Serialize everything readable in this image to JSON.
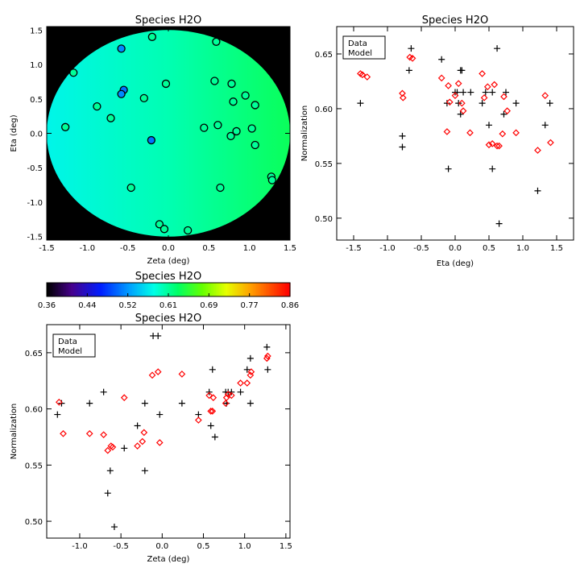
{
  "chart_data": [
    {
      "type": "heatmap",
      "title": "Species H2O",
      "xlabel": "Zeta (deg)",
      "ylabel": "Eta (deg)",
      "xlim": [
        -1.5,
        1.5
      ],
      "ylim": [
        -1.55,
        1.55
      ],
      "xticks": [
        "-1.5",
        "-1.0",
        "-0.5",
        "0.0",
        "0.5",
        "1.0",
        "1.5"
      ],
      "yticks": [
        "-1.5",
        "-1.0",
        "-0.5",
        "0.0",
        "0.5",
        "1.0",
        "1.5"
      ],
      "field_description": "Model normalization inside a 1.5 deg radius circular field; black outside",
      "markers": [
        {
          "x": -0.58,
          "y": 1.23,
          "v": 0.52
        },
        {
          "x": -0.2,
          "y": 1.4,
          "v": 0.61
        },
        {
          "x": 0.59,
          "y": 1.33,
          "v": 0.61
        },
        {
          "x": -1.17,
          "y": 0.88,
          "v": 0.61
        },
        {
          "x": -0.03,
          "y": 0.72,
          "v": 0.61
        },
        {
          "x": 0.57,
          "y": 0.76,
          "v": 0.61
        },
        {
          "x": 0.78,
          "y": 0.72,
          "v": 0.61
        },
        {
          "x": -0.55,
          "y": 0.63,
          "v": 0.51
        },
        {
          "x": -0.58,
          "y": 0.57,
          "v": 0.52
        },
        {
          "x": 0.95,
          "y": 0.55,
          "v": 0.61
        },
        {
          "x": -0.3,
          "y": 0.51,
          "v": 0.61
        },
        {
          "x": 0.8,
          "y": 0.46,
          "v": 0.61
        },
        {
          "x": -0.88,
          "y": 0.39,
          "v": 0.61
        },
        {
          "x": 1.07,
          "y": 0.41,
          "v": 0.61
        },
        {
          "x": -0.71,
          "y": 0.22,
          "v": 0.61
        },
        {
          "x": 0.61,
          "y": 0.12,
          "v": 0.61
        },
        {
          "x": -1.27,
          "y": 0.09,
          "v": 0.61
        },
        {
          "x": 0.44,
          "y": 0.08,
          "v": 0.61
        },
        {
          "x": 1.03,
          "y": 0.07,
          "v": 0.61
        },
        {
          "x": 0.84,
          "y": 0.03,
          "v": 0.61
        },
        {
          "x": 0.77,
          "y": -0.04,
          "v": 0.61
        },
        {
          "x": -0.21,
          "y": -0.1,
          "v": 0.51
        },
        {
          "x": 1.07,
          "y": -0.17,
          "v": 0.61
        },
        {
          "x": 1.27,
          "y": -0.63,
          "v": 0.61
        },
        {
          "x": 1.28,
          "y": -0.68,
          "v": 0.61
        },
        {
          "x": -0.46,
          "y": -0.79,
          "v": 0.61
        },
        {
          "x": 0.64,
          "y": -0.79,
          "v": 0.61
        },
        {
          "x": -0.11,
          "y": -1.32,
          "v": 0.61
        },
        {
          "x": -0.05,
          "y": -1.39,
          "v": 0.61
        },
        {
          "x": 0.24,
          "y": -1.41,
          "v": 0.61
        }
      ]
    },
    {
      "type": "scatter",
      "title": "Species H2O",
      "xlabel": "Eta (deg)",
      "ylabel": "Normalization",
      "xlim": [
        -1.75,
        1.75
      ],
      "ylim": [
        0.48,
        0.675
      ],
      "xticks": [
        "-1.5",
        "-1.0",
        "-0.5",
        "0.0",
        "0.5",
        "1.0",
        "1.5"
      ],
      "yticks": [
        "0.50",
        "0.55",
        "0.60",
        "0.65"
      ],
      "legend_position": "top-left",
      "series": [
        {
          "name": "Data",
          "marker": "plus",
          "color": "#000000",
          "x": [
            -1.4,
            -0.78,
            -0.78,
            -0.68,
            -0.65,
            -0.2,
            -0.12,
            -0.1,
            0.0,
            0.03,
            0.05,
            0.08,
            0.08,
            0.1,
            0.12,
            0.23,
            0.4,
            0.45,
            0.5,
            0.55,
            0.55,
            0.62,
            0.65,
            0.72,
            0.75,
            0.9,
            1.22,
            1.33,
            1.4
          ],
          "y": [
            0.605,
            0.575,
            0.565,
            0.635,
            0.655,
            0.645,
            0.605,
            0.545,
            0.615,
            0.615,
            0.605,
            0.635,
            0.595,
            0.635,
            0.615,
            0.615,
            0.605,
            0.615,
            0.585,
            0.545,
            0.615,
            0.655,
            0.495,
            0.595,
            0.615,
            0.605,
            0.525,
            0.585,
            0.605
          ]
        },
        {
          "name": "Model",
          "marker": "diamond",
          "color": "#ff0000",
          "x": [
            -1.4,
            -1.37,
            -1.3,
            -0.78,
            -0.77,
            -0.67,
            -0.63,
            -0.2,
            -0.12,
            -0.1,
            -0.08,
            0.0,
            0.05,
            0.1,
            0.12,
            0.22,
            0.4,
            0.43,
            0.48,
            0.5,
            0.55,
            0.58,
            0.62,
            0.65,
            0.7,
            0.72,
            0.77,
            0.9,
            1.22,
            1.33,
            1.41
          ],
          "y": [
            0.632,
            0.631,
            0.629,
            0.614,
            0.61,
            0.647,
            0.646,
            0.628,
            0.579,
            0.621,
            0.606,
            0.612,
            0.623,
            0.605,
            0.598,
            0.578,
            0.632,
            0.61,
            0.62,
            0.567,
            0.568,
            0.622,
            0.566,
            0.566,
            0.577,
            0.611,
            0.598,
            0.578,
            0.562,
            0.612,
            0.569
          ]
        }
      ]
    },
    {
      "type": "colorbar",
      "title": "Species H2O",
      "range": [
        0.36,
        0.86
      ],
      "colormap": "rainbow",
      "tick_labels": [
        "0.36",
        "0.44",
        "0.52",
        "0.61",
        "0.69",
        "0.77",
        "0.86"
      ]
    },
    {
      "type": "scatter",
      "title": "Species H2O",
      "xlabel": "Zeta (deg)",
      "ylabel": "Normalization",
      "xlim": [
        -1.4,
        1.55
      ],
      "ylim": [
        0.485,
        0.675
      ],
      "xticks": [
        "-1.0",
        "-0.5",
        "0.0",
        "0.5",
        "1.0",
        "1.5"
      ],
      "yticks": [
        "0.50",
        "0.55",
        "0.60",
        "0.65"
      ],
      "legend_position": "top-left",
      "series": [
        {
          "name": "Data",
          "marker": "plus",
          "color": "#000000",
          "x": [
            -1.27,
            -1.22,
            -0.88,
            -0.71,
            -0.66,
            -0.63,
            -0.58,
            -0.46,
            -0.3,
            -0.21,
            -0.21,
            -0.11,
            -0.05,
            -0.03,
            0.24,
            0.44,
            0.57,
            0.59,
            0.61,
            0.64,
            0.77,
            0.78,
            0.8,
            0.84,
            0.95,
            1.03,
            1.07,
            1.07,
            1.27,
            1.28
          ],
          "y": [
            0.595,
            0.605,
            0.605,
            0.615,
            0.525,
            0.545,
            0.495,
            0.565,
            0.585,
            0.545,
            0.605,
            0.665,
            0.665,
            0.595,
            0.605,
            0.595,
            0.615,
            0.585,
            0.635,
            0.575,
            0.615,
            0.605,
            0.615,
            0.615,
            0.615,
            0.635,
            0.605,
            0.645,
            0.655,
            0.635
          ]
        },
        {
          "name": "Model",
          "marker": "diamond",
          "color": "#ff0000",
          "x": [
            -1.25,
            -1.2,
            -0.88,
            -0.71,
            -0.66,
            -0.62,
            -0.6,
            -0.46,
            -0.3,
            -0.24,
            -0.22,
            -0.12,
            -0.05,
            -0.03,
            0.24,
            0.44,
            0.57,
            0.59,
            0.61,
            0.62,
            0.77,
            0.78,
            0.8,
            0.84,
            0.95,
            1.03,
            1.07,
            1.08,
            1.27,
            1.28
          ],
          "y": [
            0.606,
            0.578,
            0.578,
            0.577,
            0.563,
            0.567,
            0.566,
            0.61,
            0.567,
            0.571,
            0.579,
            0.63,
            0.633,
            0.57,
            0.631,
            0.59,
            0.612,
            0.598,
            0.598,
            0.61,
            0.605,
            0.61,
            0.613,
            0.612,
            0.623,
            0.623,
            0.63,
            0.633,
            0.645,
            0.647
          ]
        }
      ]
    }
  ]
}
